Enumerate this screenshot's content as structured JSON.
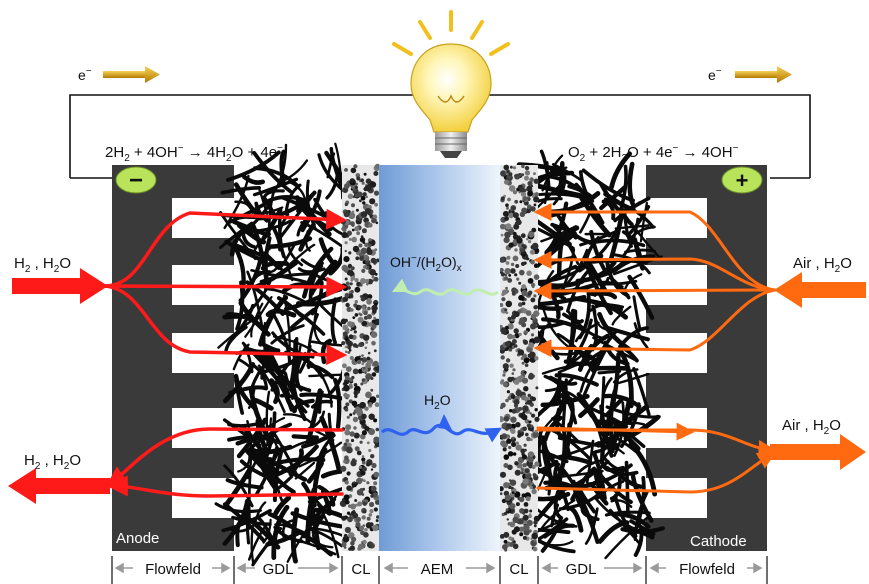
{
  "electron": {
    "left": "e",
    "right": "e",
    "charge": "−"
  },
  "reactions": {
    "anode": {
      "a": "2H",
      "a_sub": "2",
      "b": " + 4OH",
      "b_sup": "−",
      "c": " → 4H",
      "c_sub": "2",
      "d": "O + 4e",
      "d_sup": "−"
    },
    "cathode": {
      "a": "O",
      "a_sub": "2",
      "b": " + 2H",
      "b_sub": "2",
      "c": "O + 4e",
      "c_sup": "−",
      "d": " → 4OH",
      "d_sup": "−"
    }
  },
  "terminals": {
    "negative": "−",
    "positive": "+"
  },
  "streams": {
    "h2_in": {
      "a": "H",
      "a_sub": "2",
      "b": " , H",
      "b_sub": "2",
      "c": "O"
    },
    "h2_out": {
      "a": "H",
      "a_sub": "2",
      "b": " , H",
      "b_sub": "2",
      "c": "O"
    },
    "air_in": {
      "a": "Air , H",
      "a_sub": "2",
      "b": "O"
    },
    "air_out": {
      "a": "Air , H",
      "a_sub": "2",
      "b": "O"
    }
  },
  "ions": {
    "hydroxide": {
      "a": "OH",
      "a_sup": "−",
      "b": "/(H",
      "b_sub": "2",
      "c": "O)",
      "c_sub": "x"
    },
    "water": {
      "a": "H",
      "a_sub": "2",
      "b": "O"
    }
  },
  "electrodes": {
    "anode": "Anode",
    "cathode": "Cathode"
  },
  "layers": [
    "Flowfeld",
    "GDL",
    "CL",
    "AEM",
    "CL",
    "GDL",
    "Flowfeld"
  ],
  "colors": {
    "flowfield": "#3a3a3a",
    "hydrogen": "#ff1a1a",
    "air": "#ff6a10",
    "water": "#2f62ee",
    "hydroxide": "#c8f0b8",
    "membrane": "#7aa6dc",
    "terminal": "#b9e35a",
    "electron_arrow": "#d99a06"
  }
}
